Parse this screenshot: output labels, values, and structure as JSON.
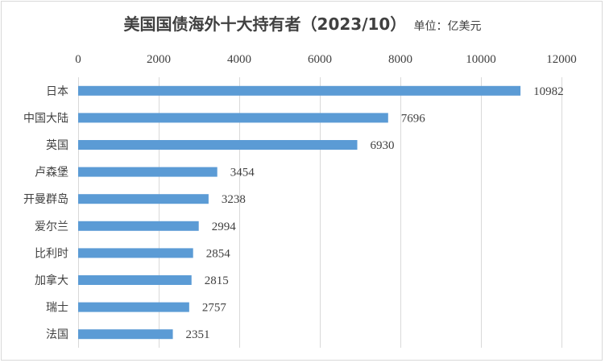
{
  "chart_data": {
    "type": "bar",
    "orientation": "horizontal",
    "title": "美国国债海外十大持有者（2023/10）",
    "subtitle": "单位：亿美元",
    "categories": [
      "日本",
      "中国大陆",
      "英国",
      "卢森堡",
      "开曼群岛",
      "爱尔兰",
      "比利时",
      "加拿大",
      "瑞士",
      "法国"
    ],
    "values": [
      10982,
      7696,
      6930,
      3454,
      3238,
      2994,
      2854,
      2815,
      2757,
      2351
    ],
    "xlim": [
      0,
      12000
    ],
    "xticks": [
      "0",
      "2000",
      "4000",
      "6000",
      "8000",
      "10000",
      "12000"
    ],
    "xticks_values": [
      0,
      2000,
      4000,
      6000,
      8000,
      10000,
      12000
    ],
    "axis_position": "top",
    "grid": true,
    "legend": "none",
    "bar_color": "#5b9bd5",
    "gridline_color": "#d9d9d9",
    "text_color": "#404040"
  }
}
